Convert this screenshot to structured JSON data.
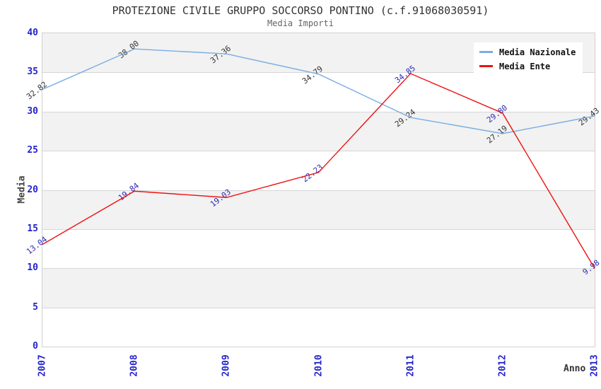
{
  "chart_data": {
    "type": "line",
    "title": "PROTEZIONE CIVILE GRUPPO SOCCORSO PONTINO (c.f.91068030591)",
    "subtitle": "Media Importi",
    "xlabel": "Anno",
    "ylabel": "Media",
    "x_categories": [
      "2007",
      "2008",
      "2009",
      "2010",
      "2011",
      "2012",
      "2013"
    ],
    "ylim": [
      0,
      40
    ],
    "ytick_step": 5,
    "grid": "horizontal-bands",
    "legend_position": "top-right",
    "value_decimals": 2,
    "series": [
      {
        "name": "Media Nazionale",
        "color": "#7aade3",
        "label_color": "#333333",
        "values": [
          32.82,
          38.0,
          37.36,
          34.79,
          29.24,
          27.19,
          29.43
        ]
      },
      {
        "name": "Media Ente",
        "color": "#ee1111",
        "label_color": "#2b2bb4",
        "values": [
          13.04,
          19.84,
          19.03,
          22.23,
          34.85,
          29.8,
          9.98
        ]
      }
    ],
    "colors": {
      "tick_label": "#2424cc",
      "band_gray": "#f2f2f2",
      "band_white": "#ffffff",
      "gridline": "#d6d6d6",
      "plot_border": "#d0d0d0",
      "title": "#333333",
      "subtitle": "#666666",
      "axis_title": "#444444"
    }
  }
}
